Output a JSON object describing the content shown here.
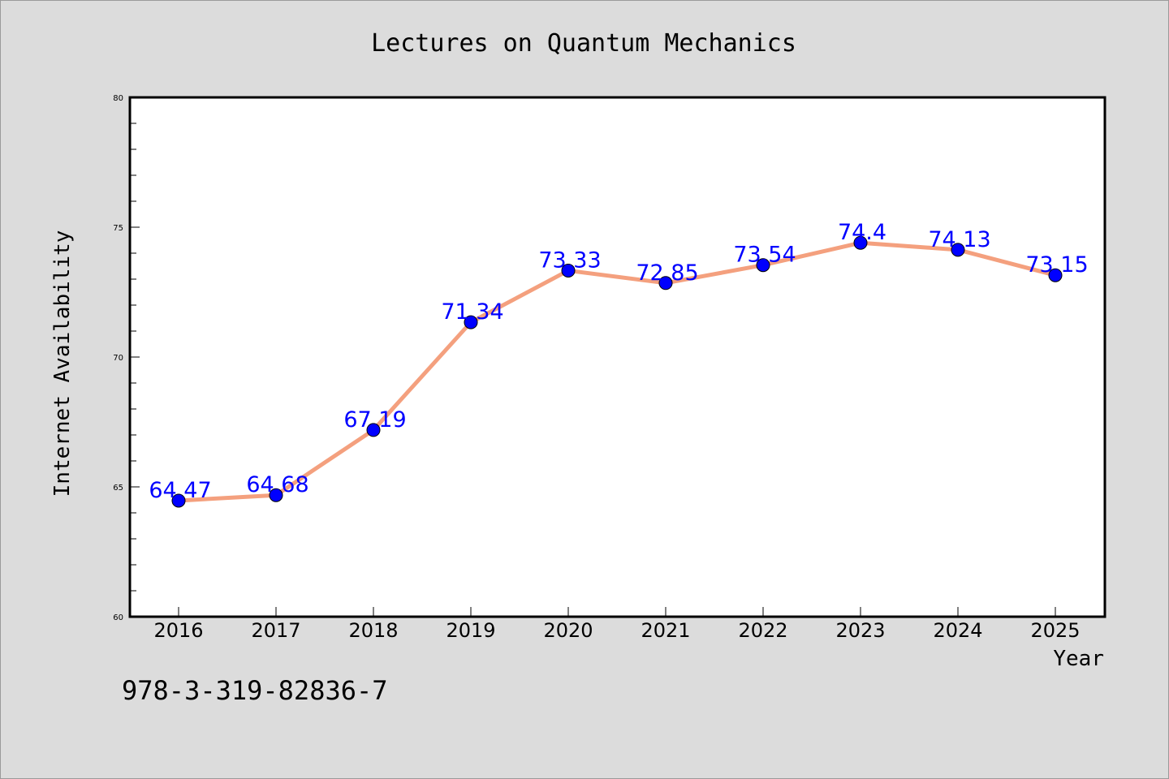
{
  "caption": "978-3-319-82836-7",
  "chart_data": {
    "type": "line",
    "title": "Lectures on Quantum Mechanics",
    "xlabel": "Year",
    "ylabel": "Internet Availability",
    "categories": [
      "2016",
      "2017",
      "2018",
      "2019",
      "2020",
      "2021",
      "2022",
      "2023",
      "2024",
      "2025"
    ],
    "series": [
      {
        "values": [
          64.47,
          64.68,
          67.19,
          71.34,
          73.33,
          72.85,
          73.54,
          74.4,
          74.13,
          73.15
        ],
        "line_color": "#f4a07e",
        "marker_color": "#0000ff"
      }
    ],
    "data_labels": [
      "64.47",
      "64.68",
      "67.19",
      "71.34",
      "73.33",
      "72.85",
      "73.54",
      "74.4",
      "74.13",
      "73.15"
    ],
    "label_color": "#0000ff",
    "ylim": [
      60,
      80
    ],
    "yticks": [
      "60",
      "65",
      "70",
      "75",
      "80"
    ],
    "grid": false,
    "legend": "none",
    "background": "#dcdcdc",
    "plot_background": "#ffffff"
  }
}
